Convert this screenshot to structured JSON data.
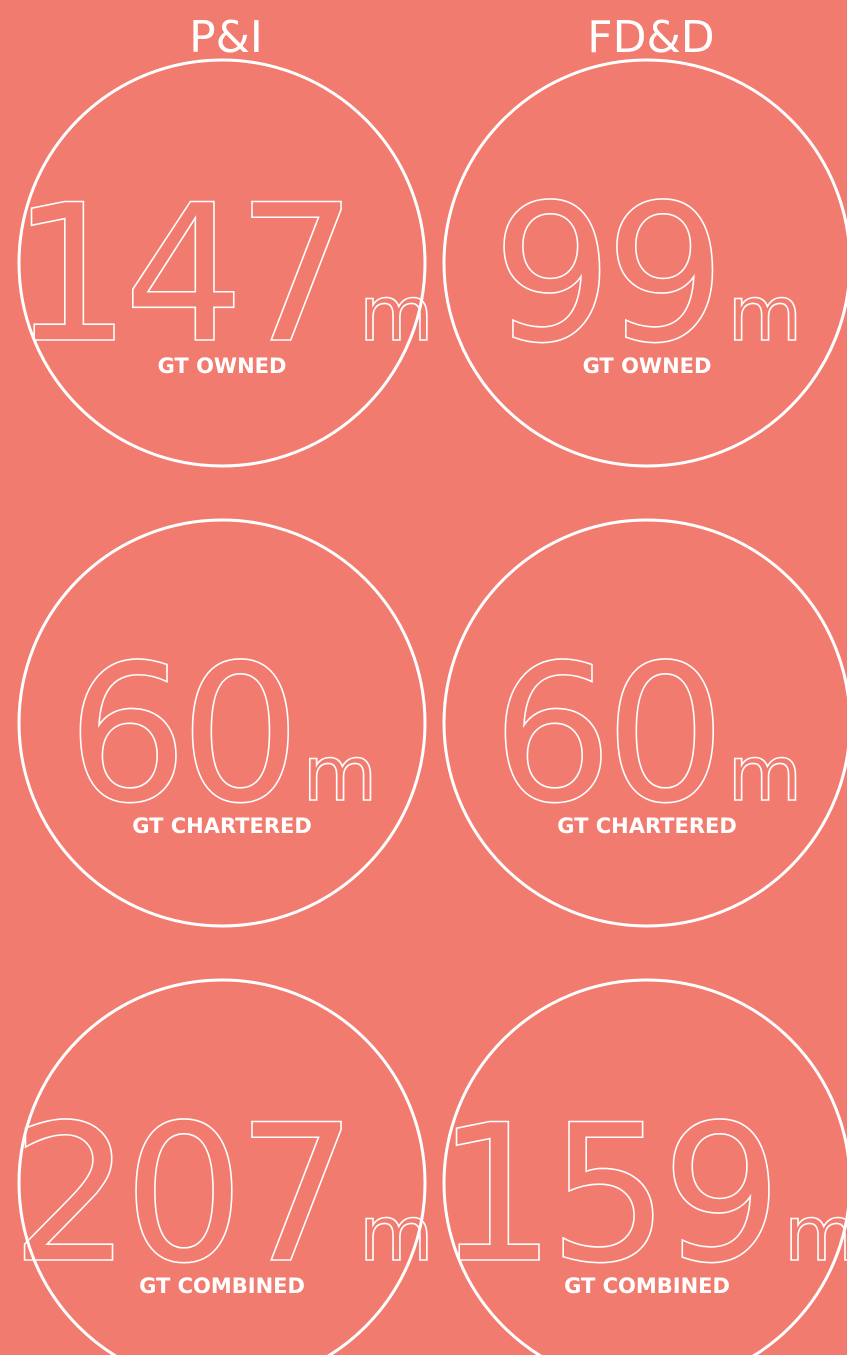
{
  "columns": [
    {
      "title": "P&I",
      "stats": [
        {
          "value": "147",
          "unit": "m",
          "label": "GT OWNED"
        },
        {
          "value": "60",
          "unit": "m",
          "label": "GT CHARTERED"
        },
        {
          "value": "207",
          "unit": "m",
          "label": "GT COMBINED"
        }
      ]
    },
    {
      "title": "FD&D",
      "stats": [
        {
          "value": "99",
          "unit": "m",
          "label": "GT OWNED"
        },
        {
          "value": "60",
          "unit": "m",
          "label": "GT CHARTERED"
        },
        {
          "value": "159",
          "unit": "m",
          "label": "GT COMBINED"
        }
      ]
    }
  ]
}
